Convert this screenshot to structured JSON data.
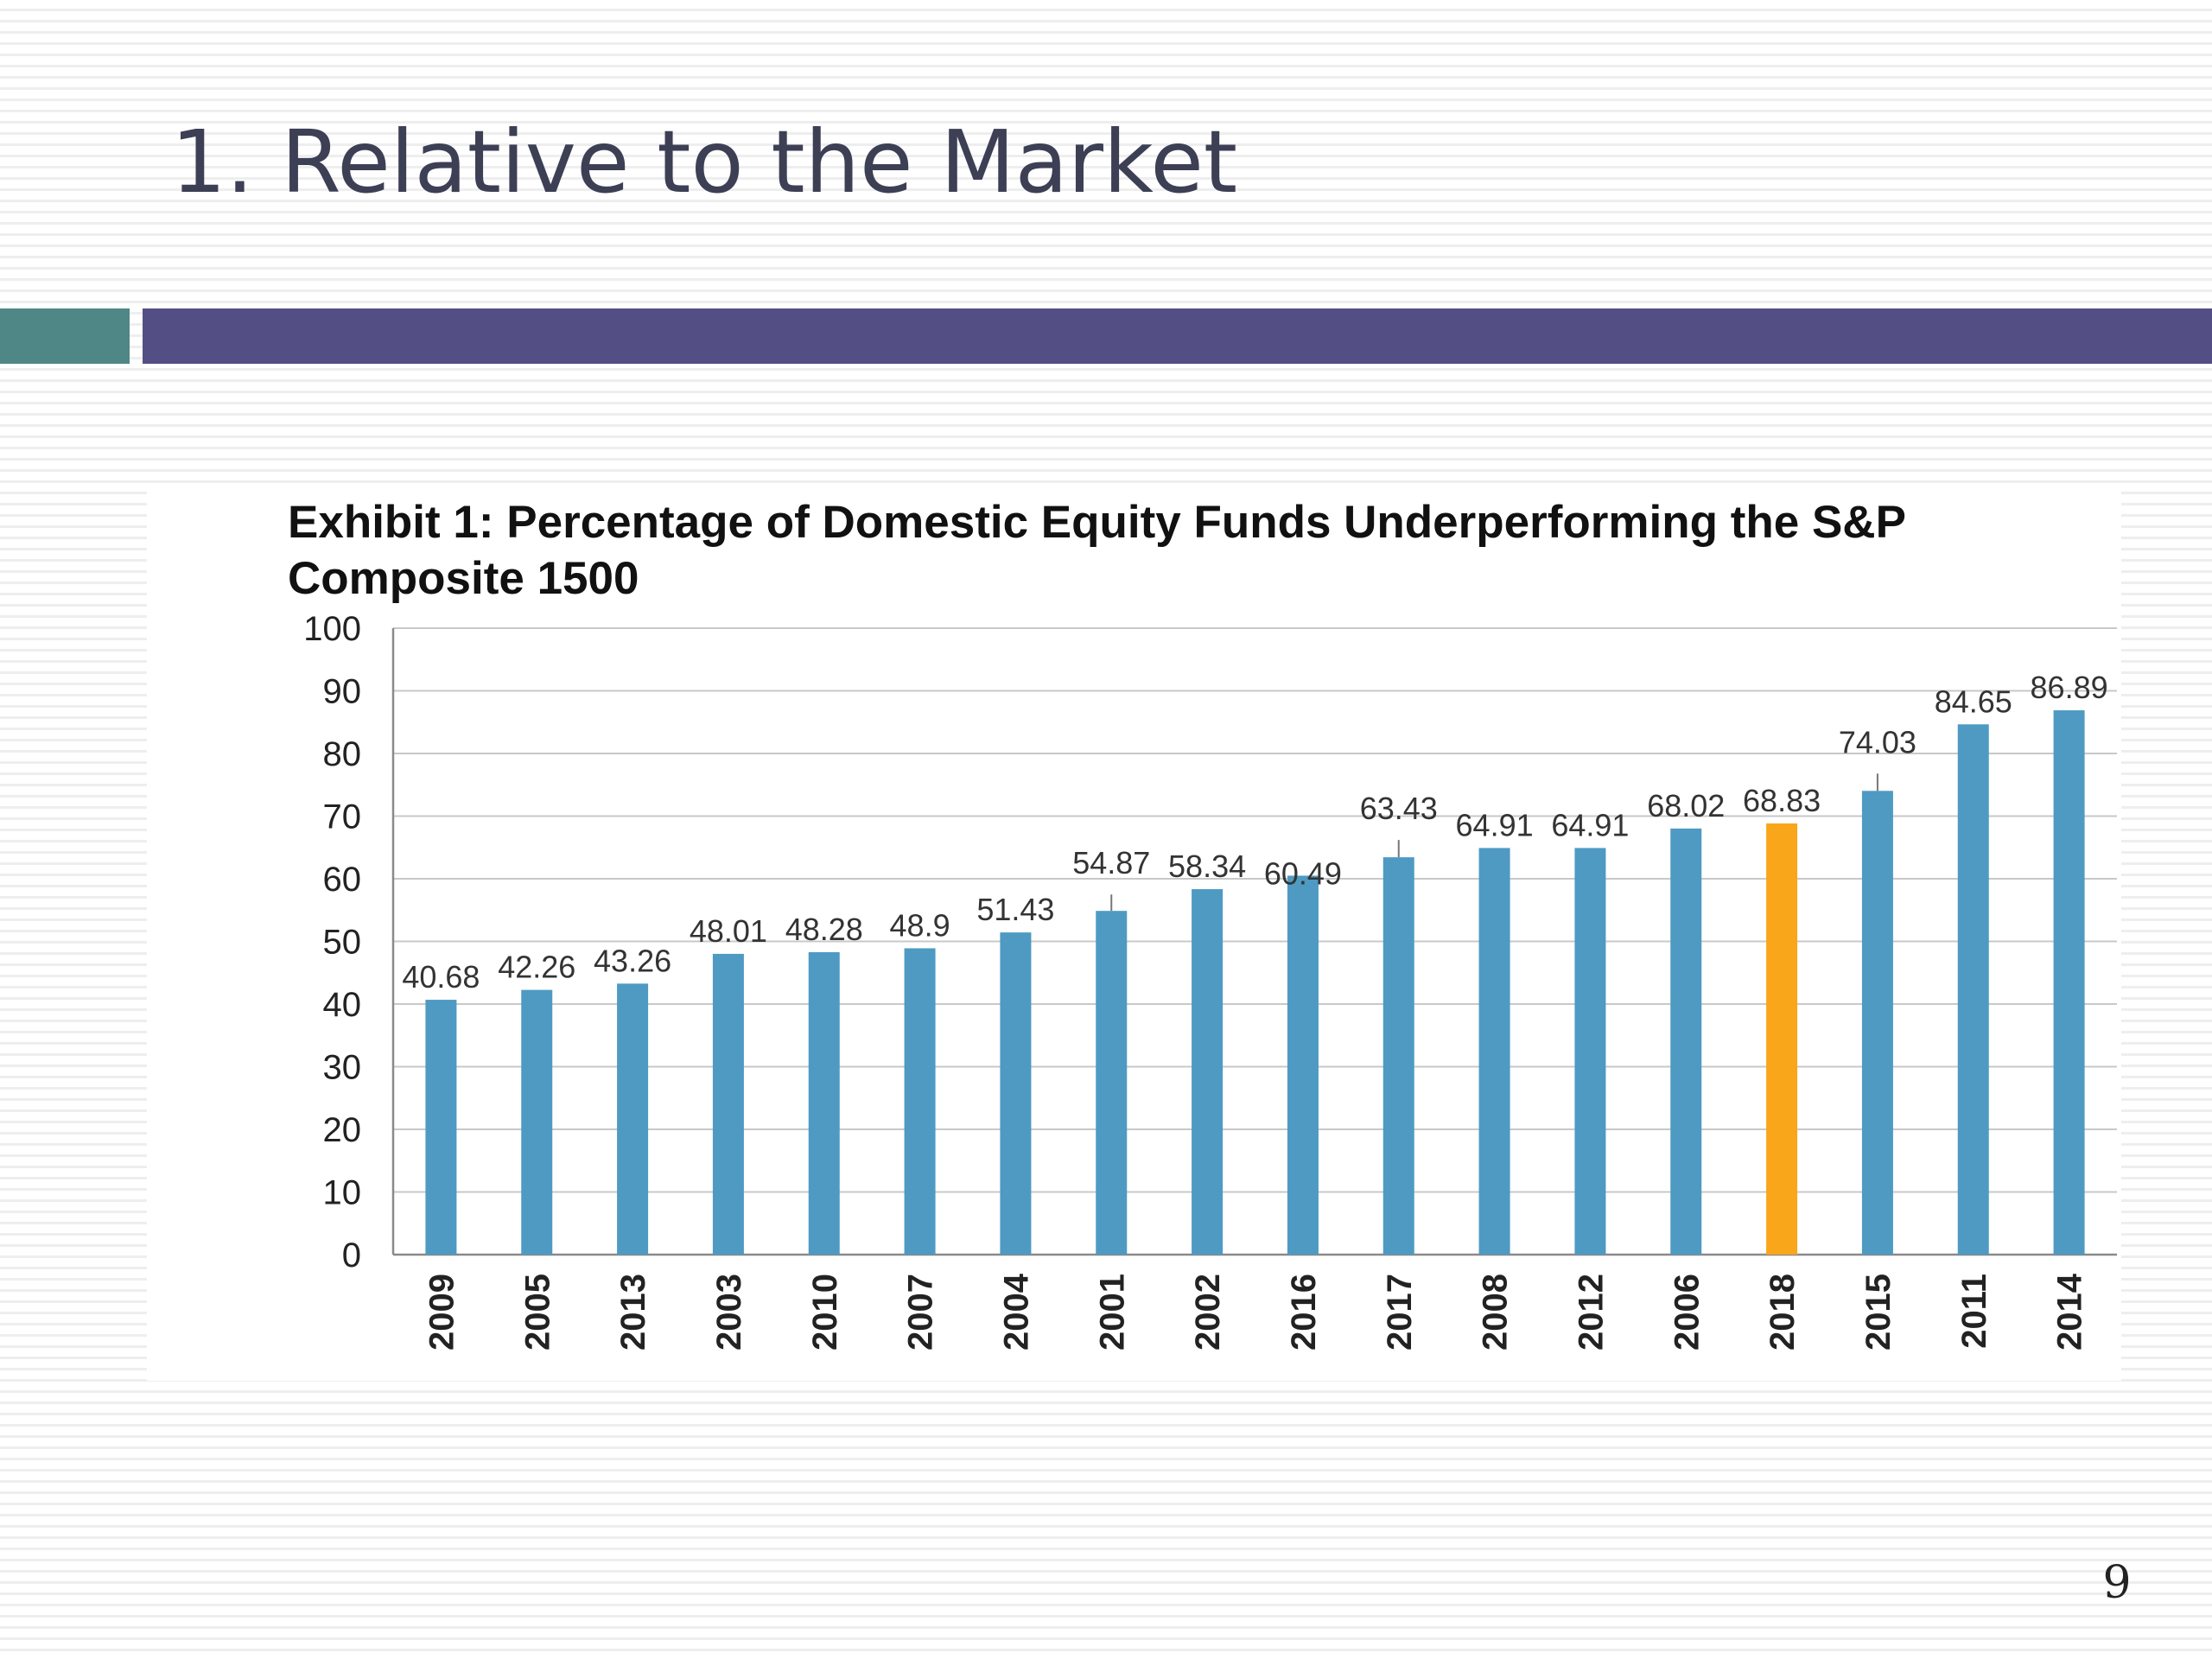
{
  "slide": {
    "title": "1. Relative to the Market",
    "page_number": "9"
  },
  "colors": {
    "title_text": "#3d3f55",
    "accent_left": "#4f8686",
    "accent_main": "#534f84",
    "bar": "#4e9ac3",
    "bar_highlight": "#f9a61a",
    "grid": "#c8c8c8"
  },
  "chart_data": {
    "type": "bar",
    "title": "Exhibit 1: Percentage of Domestic Equity Funds Underperforming the S&P Composite 1500",
    "xlabel": "",
    "ylabel": "",
    "ylim": [
      0,
      100
    ],
    "yticks": [
      "0",
      "10",
      "20",
      "30",
      "40",
      "50",
      "60",
      "70",
      "80",
      "90",
      "100"
    ],
    "grid": true,
    "legend": "none",
    "highlight_category": "2018",
    "categories": [
      "2009",
      "2005",
      "2013",
      "2003",
      "2010",
      "2007",
      "2004",
      "2001",
      "2002",
      "2016",
      "2017",
      "2008",
      "2012",
      "2006",
      "2018",
      "2015",
      "2011",
      "2014"
    ],
    "values": [
      40.68,
      42.26,
      43.26,
      48.01,
      48.28,
      48.9,
      51.43,
      54.87,
      58.34,
      60.49,
      63.43,
      64.91,
      64.91,
      68.02,
      68.83,
      74.03,
      84.65,
      86.89
    ],
    "value_labels": [
      "40.68",
      "42.26",
      "43.26",
      "48.01",
      "48.28",
      "48.9",
      "51.43",
      "54.87",
      "58.34",
      "60.49",
      "63.43",
      "64.91",
      "64.91",
      "68.02",
      "68.83",
      "74.03",
      "84.65",
      "86.89"
    ]
  }
}
